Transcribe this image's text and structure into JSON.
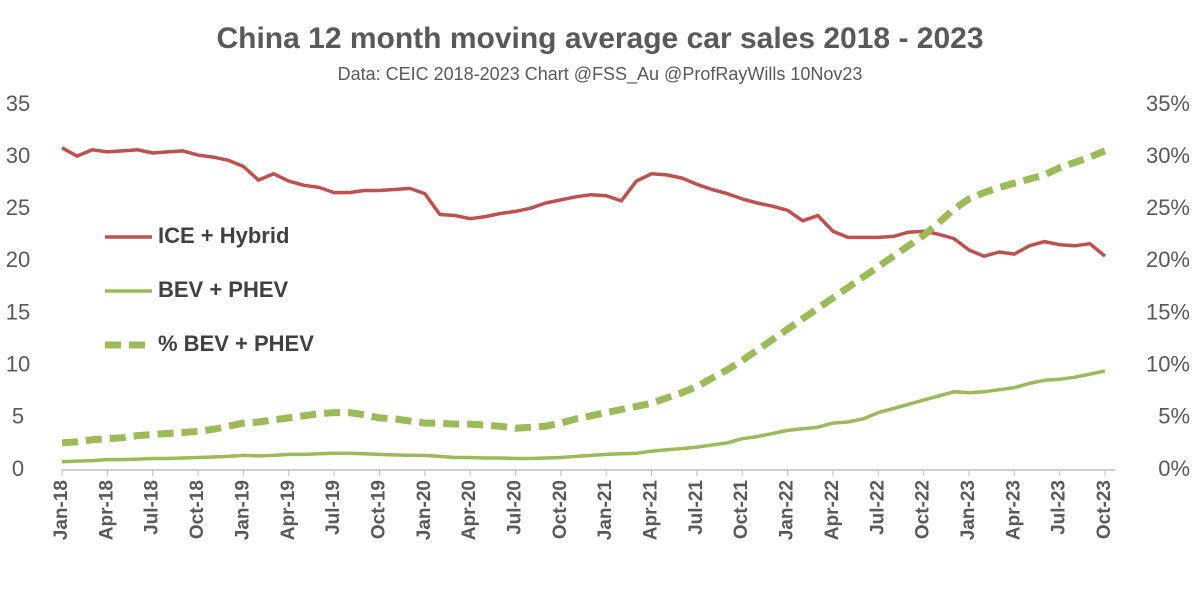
{
  "chart_data": {
    "type": "line",
    "title": "China 12 month moving average car sales 2018 - 2023",
    "subtitle": "Data: CEIC 2018-2023  Chart @FSS_Au @ProfRayWills 10Nov23",
    "categories": [
      "Jan-18",
      null,
      null,
      "Apr-18",
      null,
      null,
      "Jul-18",
      null,
      null,
      "Oct-18",
      null,
      null,
      "Jan-19",
      null,
      null,
      "Apr-19",
      null,
      null,
      "Jul-19",
      null,
      null,
      "Oct-19",
      null,
      null,
      "Jan-20",
      null,
      null,
      "Apr-20",
      null,
      null,
      "Jul-20",
      null,
      null,
      "Oct-20",
      null,
      null,
      "Jan-21",
      null,
      null,
      "Apr-21",
      null,
      null,
      "Jul-21",
      null,
      null,
      "Oct-21",
      null,
      null,
      "Jan-22",
      null,
      null,
      "Apr-22",
      null,
      null,
      "Jul-22",
      null,
      null,
      "Oct-22",
      null,
      null,
      "Jan-23",
      null,
      null,
      "Apr-23",
      null,
      null,
      "Jul-23",
      null,
      null,
      "Oct-23"
    ],
    "series": [
      {
        "name": "ICE + Hybrid",
        "color": "#c0504d",
        "axis": "y",
        "dashed": false,
        "values": [
          30.9,
          30.1,
          30.7,
          30.5,
          30.6,
          30.7,
          30.4,
          30.5,
          30.6,
          30.2,
          30.0,
          29.7,
          29.1,
          27.8,
          28.4,
          27.7,
          27.3,
          27.1,
          26.6,
          26.6,
          26.8,
          26.8,
          26.9,
          27.0,
          26.5,
          24.5,
          24.4,
          24.1,
          24.3,
          24.6,
          24.8,
          25.1,
          25.6,
          25.9,
          26.2,
          26.4,
          26.3,
          25.8,
          27.7,
          28.4,
          28.3,
          28.0,
          27.4,
          26.9,
          26.5,
          26.0,
          25.6,
          25.3,
          24.9,
          23.9,
          24.4,
          22.9,
          22.3,
          22.3,
          22.3,
          22.4,
          22.8,
          22.9,
          22.6,
          22.2,
          21.1,
          20.5,
          20.9,
          20.7,
          21.5,
          21.9,
          21.6,
          21.5,
          21.7,
          20.5
        ]
      },
      {
        "name": "BEV + PHEV",
        "color": "#9bbb59",
        "axis": "y",
        "dashed": false,
        "values": [
          0.8,
          0.85,
          0.9,
          1.0,
          1.0,
          1.05,
          1.1,
          1.1,
          1.15,
          1.2,
          1.25,
          1.3,
          1.4,
          1.35,
          1.4,
          1.5,
          1.5,
          1.55,
          1.6,
          1.6,
          1.55,
          1.5,
          1.45,
          1.4,
          1.4,
          1.3,
          1.2,
          1.2,
          1.15,
          1.15,
          1.1,
          1.1,
          1.15,
          1.2,
          1.3,
          1.4,
          1.5,
          1.55,
          1.6,
          1.8,
          1.95,
          2.05,
          2.2,
          2.4,
          2.6,
          3.0,
          3.2,
          3.5,
          3.8,
          3.95,
          4.1,
          4.5,
          4.6,
          4.9,
          5.5,
          5.9,
          6.3,
          6.7,
          7.1,
          7.5,
          7.4,
          7.5,
          7.7,
          7.9,
          8.3,
          8.6,
          8.7,
          8.9,
          9.2,
          9.5
        ]
      },
      {
        "name": "% BEV + PHEV",
        "color": "#9bbb59",
        "axis": "y2",
        "dashed": true,
        "values": [
          2.6,
          2.7,
          2.9,
          3.0,
          3.1,
          3.3,
          3.4,
          3.5,
          3.6,
          3.7,
          3.9,
          4.2,
          4.5,
          4.6,
          4.8,
          5.0,
          5.2,
          5.4,
          5.5,
          5.5,
          5.3,
          5.0,
          4.9,
          4.7,
          4.5,
          4.5,
          4.4,
          4.4,
          4.3,
          4.2,
          4.0,
          4.1,
          4.2,
          4.5,
          4.9,
          5.2,
          5.5,
          5.8,
          6.1,
          6.4,
          6.9,
          7.4,
          8.0,
          8.8,
          9.6,
          10.5,
          11.5,
          12.5,
          13.5,
          14.5,
          15.5,
          16.5,
          17.5,
          18.5,
          19.5,
          20.5,
          21.5,
          22.5,
          23.7,
          25.0,
          26.0,
          26.6,
          27.1,
          27.5,
          27.9,
          28.3,
          29.0,
          29.5,
          30.0,
          30.6
        ]
      }
    ],
    "ylim": [
      0,
      35
    ],
    "yticks": [
      0,
      5,
      10,
      15,
      20,
      25,
      30,
      35
    ],
    "y2lim": [
      0,
      35
    ],
    "y2ticks": [
      {
        "value": 0,
        "label": "0%"
      },
      {
        "value": 5,
        "label": "5%"
      },
      {
        "value": 10,
        "label": "10%"
      },
      {
        "value": 15,
        "label": "15%"
      },
      {
        "value": 20,
        "label": "20%"
      },
      {
        "value": 25,
        "label": "25%"
      },
      {
        "value": 30,
        "label": "30%"
      },
      {
        "value": 35,
        "label": "35%"
      }
    ],
    "grid": false,
    "legend_position": "left"
  }
}
